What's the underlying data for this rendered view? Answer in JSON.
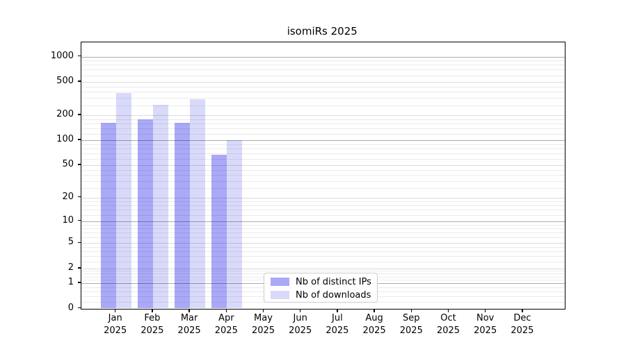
{
  "title": "isomiRs 2025",
  "legend": {
    "items": [
      {
        "label": "Nb of distinct IPs",
        "color": "#a9a9f8"
      },
      {
        "label": "Nb of downloads",
        "color": "#d9d9fa"
      }
    ]
  },
  "chart_data": {
    "type": "bar",
    "title": "isomiRs 2025",
    "categories": [
      "Jan",
      "Feb",
      "Mar",
      "Apr",
      "May",
      "Jun",
      "Jul",
      "Aug",
      "Sep",
      "Oct",
      "Nov",
      "Dec"
    ],
    "x_year": "2025",
    "series": [
      {
        "name": "Nb of distinct IPs",
        "color": "#a9a9f8",
        "values": [
          162,
          180,
          162,
          67,
          null,
          null,
          null,
          null,
          null,
          null,
          null,
          null
        ]
      },
      {
        "name": "Nb of downloads",
        "color": "#d9d9fa",
        "values": [
          370,
          265,
          310,
          100,
          null,
          null,
          null,
          null,
          null,
          null,
          null,
          null
        ]
      }
    ],
    "yscale": "log1p",
    "yticks": [
      0,
      1,
      2,
      5,
      10,
      20,
      50,
      100,
      200,
      500,
      1000
    ],
    "ylim": [
      0,
      1485
    ],
    "xlabel": "",
    "ylabel": "",
    "grid": "both",
    "legend_position": "inside-lower-center"
  }
}
